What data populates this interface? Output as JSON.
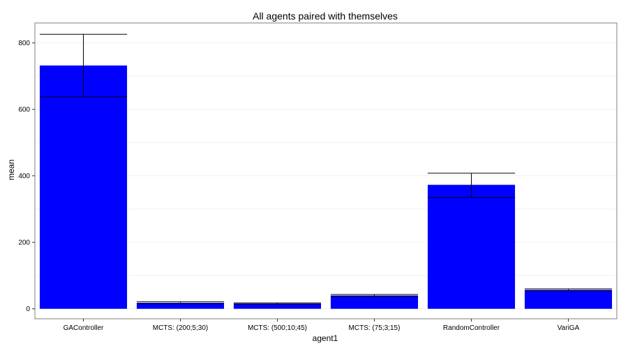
{
  "chart_data": {
    "type": "bar",
    "title": "All agents paired with themselves",
    "xlabel": "agent1",
    "ylabel": "mean",
    "categories": [
      "GAController",
      "MCTS: (200;5;30)",
      "MCTS: (500;10;45)",
      "MCTS: (75;3;15)",
      "RandomController",
      "VariGA"
    ],
    "values": [
      732,
      18,
      16,
      40,
      373,
      57
    ],
    "error_low": [
      638,
      15,
      14,
      37,
      335,
      54
    ],
    "error_high": [
      826,
      21,
      18,
      43,
      408,
      60
    ],
    "ylim": [
      -30,
      860
    ],
    "yticks": [
      0,
      200,
      400,
      600,
      800
    ],
    "grid": true,
    "bar_color": "#0000FF",
    "gridline_color": "#F0F0F0"
  }
}
